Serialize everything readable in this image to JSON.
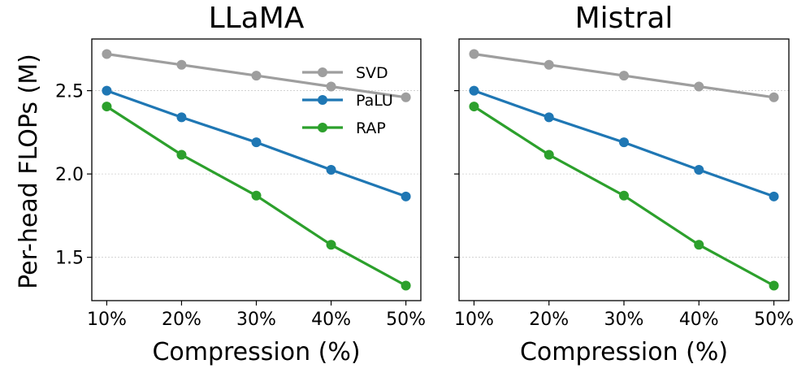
{
  "figure": {
    "ylabel": "Per-head FLOPs (M)"
  },
  "chart_data": [
    {
      "type": "line",
      "title": "LLaMA",
      "xlabel": "Compression (%)",
      "ylabel": "Per-head FLOPs (M)",
      "categories": [
        "10%",
        "20%",
        "30%",
        "40%",
        "50%"
      ],
      "x": [
        10,
        20,
        30,
        40,
        50
      ],
      "xlim": [
        8,
        52
      ],
      "ylim": [
        1.24,
        2.81
      ],
      "yticks": [
        1.5,
        2.0,
        2.5
      ],
      "ytick_labels": [
        "1.5",
        "2.0",
        "2.5"
      ],
      "grid": "horizontal dotted",
      "legend": {
        "position": "top-right",
        "entries": [
          "SVD",
          "PaLU",
          "RAP"
        ]
      },
      "series": [
        {
          "name": "SVD",
          "color": "#9e9e9e",
          "values": [
            2.72,
            2.655,
            2.59,
            2.525,
            2.46
          ]
        },
        {
          "name": "PaLU",
          "color": "#1f77b4",
          "values": [
            2.5,
            2.34,
            2.19,
            2.025,
            1.865
          ]
        },
        {
          "name": "RAP",
          "color": "#2ca02c",
          "values": [
            2.405,
            2.115,
            1.87,
            1.575,
            1.33
          ]
        }
      ]
    },
    {
      "type": "line",
      "title": "Mistral",
      "xlabel": "Compression (%)",
      "ylabel": "",
      "categories": [
        "10%",
        "20%",
        "30%",
        "40%",
        "50%"
      ],
      "x": [
        10,
        20,
        30,
        40,
        50
      ],
      "xlim": [
        8,
        52
      ],
      "ylim": [
        1.24,
        2.81
      ],
      "yticks": [
        1.5,
        2.0,
        2.5
      ],
      "ytick_labels": [],
      "grid": "horizontal dotted",
      "legend": null,
      "series": [
        {
          "name": "SVD",
          "color": "#9e9e9e",
          "values": [
            2.72,
            2.655,
            2.59,
            2.525,
            2.46
          ]
        },
        {
          "name": "PaLU",
          "color": "#1f77b4",
          "values": [
            2.5,
            2.34,
            2.19,
            2.025,
            1.865
          ]
        },
        {
          "name": "RAP",
          "color": "#2ca02c",
          "values": [
            2.405,
            2.115,
            1.87,
            1.575,
            1.33
          ]
        }
      ]
    }
  ]
}
